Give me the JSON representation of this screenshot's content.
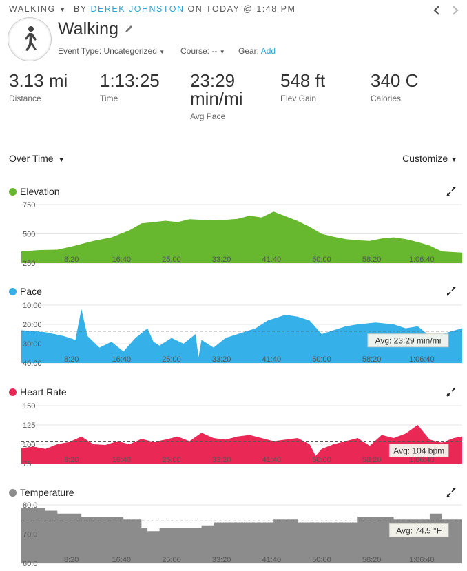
{
  "header": {
    "activity_type": "WALKING",
    "by_label": "BY",
    "user": "DEREK JOHNSTON",
    "on_label": "ON TODAY @",
    "time": "1:48 PM"
  },
  "activity": {
    "title": "Walking",
    "event_type_label": "Event Type:",
    "event_type_value": "Uncategorized",
    "course_label": "Course:",
    "course_value": "--",
    "gear_label": "Gear:",
    "gear_link": "Add"
  },
  "stats": [
    {
      "value": "3.13 mi",
      "label": "Distance"
    },
    {
      "value": "1:13:25",
      "label": "Time"
    },
    {
      "value": "23:29 min/mi",
      "label": "Avg Pace"
    },
    {
      "value": "548 ft",
      "label": "Elev Gain"
    },
    {
      "value": "340 C",
      "label": "Calories"
    }
  ],
  "controls": {
    "view": "Over Time",
    "customize": "Customize"
  },
  "colors": {
    "elevation": "#67b82e",
    "pace": "#35b0e8",
    "heart_rate": "#ea2856",
    "temperature": "#8c8c8c",
    "link": "#2aa4d6"
  },
  "chart_data": [
    {
      "type": "area",
      "title": "Elevation",
      "x_ticks": [
        "8:20",
        "16:40",
        "25:00",
        "33:20",
        "41:40",
        "50:00",
        "58:20",
        "1:06:40"
      ],
      "y_ticks": [
        "750",
        "500",
        "250"
      ],
      "ylim": [
        250,
        750
      ],
      "x_minutes": [
        0,
        3,
        6,
        9,
        12,
        15,
        18,
        20,
        22,
        24,
        26,
        28,
        30,
        32,
        34,
        36,
        38,
        40,
        42,
        44,
        46,
        48,
        50,
        52,
        54,
        56,
        58,
        60,
        62,
        64,
        66,
        68,
        70,
        73.4
      ],
      "values": [
        350,
        362,
        365,
        400,
        440,
        470,
        530,
        590,
        600,
        612,
        600,
        625,
        620,
        615,
        620,
        628,
        655,
        640,
        690,
        650,
        610,
        560,
        500,
        475,
        455,
        445,
        440,
        460,
        470,
        455,
        430,
        400,
        350,
        340
      ]
    },
    {
      "type": "area",
      "title": "Pace",
      "x_ticks": [
        "8:20",
        "16:40",
        "25:00",
        "33:20",
        "41:40",
        "50:00",
        "58:20",
        "1:06:40"
      ],
      "y_ticks": [
        "10:00",
        "20:00",
        "30:00",
        "40:00"
      ],
      "ylim": [
        10,
        40
      ],
      "inverted": true,
      "average": 23.48,
      "avg_label": "Avg: 23:29 min/mi",
      "x_minutes": [
        0,
        4,
        7,
        9,
        10,
        11,
        13,
        15,
        17,
        19,
        21,
        22,
        23,
        25,
        27,
        29,
        29.5,
        30,
        32,
        34,
        37,
        39,
        41,
        44,
        46,
        48,
        50,
        52,
        54,
        56,
        59,
        62,
        64,
        66,
        68,
        70,
        73.4
      ],
      "values": [
        23,
        24,
        26,
        28,
        12,
        26,
        32,
        29,
        34,
        27,
        22,
        29,
        31,
        27,
        30,
        25,
        37,
        28,
        32,
        27,
        24,
        22,
        18,
        15,
        16,
        18,
        25,
        23,
        21,
        20,
        19,
        20,
        22,
        21,
        26,
        25,
        22
      ]
    },
    {
      "type": "area",
      "title": "Heart Rate",
      "x_ticks": [
        "8:20",
        "16:40",
        "25:00",
        "33:20",
        "41:40",
        "50:00",
        "58:20",
        "1:06:40"
      ],
      "y_ticks": [
        "150",
        "125",
        "100",
        "75"
      ],
      "ylim": [
        75,
        150
      ],
      "average": 104,
      "avg_label": "Avg: 104 bpm",
      "x_minutes": [
        0,
        2,
        4,
        6,
        8,
        10,
        12,
        14,
        16,
        18,
        20,
        22,
        24,
        26,
        28,
        30,
        32,
        34,
        36,
        38,
        40,
        42,
        44,
        46,
        48,
        49,
        50,
        52,
        54,
        56,
        58,
        60,
        62,
        64,
        66,
        68,
        70,
        72,
        73.4
      ],
      "values": [
        95,
        97,
        94,
        100,
        103,
        110,
        100,
        99,
        104,
        100,
        107,
        103,
        106,
        110,
        104,
        115,
        108,
        106,
        110,
        112,
        108,
        104,
        106,
        108,
        100,
        85,
        94,
        100,
        104,
        108,
        98,
        112,
        108,
        114,
        125,
        106,
        102,
        108,
        110
      ]
    },
    {
      "type": "area",
      "title": "Temperature",
      "x_ticks": [
        "8:20",
        "16:40",
        "25:00",
        "33:20",
        "41:40",
        "50:00",
        "58:20",
        "1:06:40"
      ],
      "y_ticks": [
        "80.0",
        "70.0",
        "60.0"
      ],
      "ylim": [
        60,
        80
      ],
      "step": true,
      "average": 74.5,
      "avg_label": "Avg: 74.5 °F",
      "x_minutes": [
        0,
        4,
        6,
        10,
        17,
        20,
        21,
        23,
        25,
        30,
        32,
        40,
        42,
        44,
        46,
        56,
        60,
        62,
        64,
        68,
        70,
        73.4
      ],
      "values": [
        79,
        78,
        77,
        76,
        75,
        72,
        71,
        72,
        72,
        73,
        74,
        74,
        75,
        75,
        74,
        76,
        76,
        75,
        75,
        77,
        75,
        75
      ]
    }
  ]
}
